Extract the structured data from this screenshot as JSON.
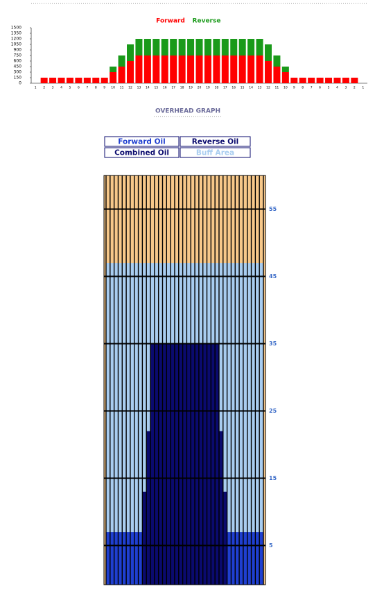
{
  "chart_data": [
    {
      "type": "stacked-bar",
      "categories": [
        "1",
        "2",
        "3",
        "4",
        "5",
        "6",
        "7",
        "8",
        "9",
        "10",
        "11",
        "12",
        "13",
        "14",
        "15",
        "16",
        "17",
        "18",
        "19",
        "20",
        "19",
        "18",
        "17",
        "16",
        "15",
        "14",
        "13",
        "12",
        "11",
        "10",
        "9",
        "8",
        "7",
        "6",
        "5",
        "4",
        "3",
        "2",
        "1"
      ],
      "series": [
        {
          "name": "Forward",
          "color": "#ff0000",
          "values": [
            0,
            150,
            150,
            150,
            150,
            150,
            150,
            150,
            150,
            300,
            450,
            600,
            750,
            750,
            750,
            750,
            750,
            750,
            750,
            750,
            750,
            750,
            750,
            750,
            750,
            750,
            750,
            600,
            450,
            300,
            150,
            150,
            150,
            150,
            150,
            150,
            150,
            150,
            0
          ]
        },
        {
          "name": "Reverse",
          "color": "#1a9a1a",
          "values": [
            0,
            0,
            0,
            0,
            0,
            0,
            0,
            0,
            0,
            150,
            300,
            450,
            450,
            450,
            450,
            450,
            450,
            450,
            450,
            450,
            450,
            450,
            450,
            450,
            450,
            450,
            450,
            450,
            300,
            150,
            0,
            0,
            0,
            0,
            0,
            0,
            0,
            0,
            0
          ]
        }
      ],
      "ylim": [
        0,
        1500
      ],
      "yticks": [
        0,
        150,
        300,
        450,
        600,
        750,
        900,
        1050,
        1200,
        1350,
        1500
      ]
    },
    {
      "type": "lane",
      "title": "OVERHEAD GRAPH",
      "legend": [
        {
          "name": "Forward Oil",
          "color": "#1f3fd0"
        },
        {
          "name": "Reverse Oil",
          "color": "#0a0a6e"
        },
        {
          "name": "Combined Oil",
          "color": "#0a0a6e"
        },
        {
          "name": "Buff Area",
          "color": "#a9cdf0"
        }
      ],
      "lane_color": "#f7c88a",
      "buff_area": 47,
      "forward_oil": [
        7,
        7,
        7,
        7,
        7,
        7,
        7,
        7,
        7,
        7,
        7,
        7,
        7,
        7,
        7,
        7,
        7,
        7,
        7,
        7,
        7,
        7,
        7,
        7,
        7,
        7,
        7,
        7,
        7,
        7,
        7,
        7,
        7,
        7,
        7,
        7,
        7,
        7,
        7
      ],
      "combined_oil": [
        0,
        0,
        0,
        0,
        0,
        0,
        0,
        0,
        0,
        13,
        22,
        35,
        35,
        35,
        35,
        35,
        35,
        35,
        35,
        35,
        35,
        35,
        35,
        35,
        35,
        35,
        35,
        35,
        22,
        13,
        0,
        0,
        0,
        0,
        0,
        0,
        0,
        0,
        0
      ],
      "ylim": [
        0,
        60
      ],
      "yticks": [
        5,
        15,
        25,
        35,
        45,
        55
      ]
    }
  ]
}
